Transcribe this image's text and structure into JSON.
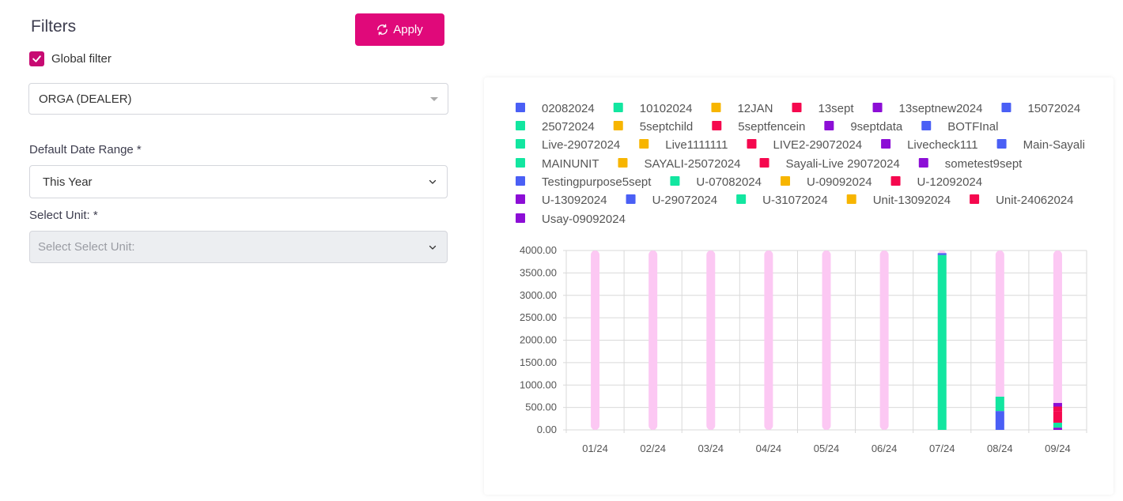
{
  "filters": {
    "title": "Filters",
    "apply_label": "Apply",
    "global_filter_label": "Global filter",
    "global_filter_checked": true,
    "organization_value": "ORGA (DEALER)",
    "date_range_label": "Default Date Range *",
    "date_range_value": "This Year",
    "unit_label": "Select Unit: *",
    "unit_placeholder": "Select Select Unit:"
  },
  "colors": {
    "accent": "#e0097a",
    "checkbox": "#c70a72",
    "background_bar": "#fcc8f3"
  },
  "chart_data": {
    "type": "bar",
    "stacked": true,
    "categories": [
      "01/24",
      "02/24",
      "03/24",
      "04/24",
      "05/24",
      "06/24",
      "07/24",
      "08/24",
      "09/24"
    ],
    "ylim": [
      0,
      4000
    ],
    "yticks": [
      "0.00",
      "500.00",
      "1000.00",
      "1500.00",
      "2000.00",
      "2500.00",
      "3000.00",
      "3500.00",
      "4000.00"
    ],
    "grid": true,
    "legend_position": "top",
    "legend": [
      {
        "name": "02082024",
        "color": "#4a5ff5"
      },
      {
        "name": "10102024",
        "color": "#12e6a0"
      },
      {
        "name": "12JAN",
        "color": "#f7b500"
      },
      {
        "name": "13sept",
        "color": "#f5084e"
      },
      {
        "name": "13septnew2024",
        "color": "#8c0ed6"
      },
      {
        "name": "15072024",
        "color": "#4a5ff5"
      },
      {
        "name": "25072024",
        "color": "#12e6a0"
      },
      {
        "name": "5septchild",
        "color": "#f7b500"
      },
      {
        "name": "5septfencein",
        "color": "#f5084e"
      },
      {
        "name": "9septdata",
        "color": "#8c0ed6"
      },
      {
        "name": "BOTFInal",
        "color": "#4a5ff5"
      },
      {
        "name": "Live-29072024",
        "color": "#12e6a0"
      },
      {
        "name": "Live1111111",
        "color": "#f7b500"
      },
      {
        "name": "LIVE2-29072024",
        "color": "#f5084e"
      },
      {
        "name": "Livecheck111",
        "color": "#8c0ed6"
      },
      {
        "name": "Main-Sayali",
        "color": "#4a5ff5"
      },
      {
        "name": "MAINUNIT",
        "color": "#12e6a0"
      },
      {
        "name": "SAYALI-25072024",
        "color": "#f7b500"
      },
      {
        "name": "Sayali-Live 29072024",
        "color": "#f5084e"
      },
      {
        "name": "sometest9sept",
        "color": "#8c0ed6"
      },
      {
        "name": "Testingpurpose5sept",
        "color": "#4a5ff5"
      },
      {
        "name": "U-07082024",
        "color": "#12e6a0"
      },
      {
        "name": "U-09092024",
        "color": "#f7b500"
      },
      {
        "name": "U-12092024",
        "color": "#f5084e"
      },
      {
        "name": "U-13092024",
        "color": "#8c0ed6"
      },
      {
        "name": "U-29072024",
        "color": "#4a5ff5"
      },
      {
        "name": "U-31072024",
        "color": "#12e6a0"
      },
      {
        "name": "Unit-13092024",
        "color": "#f7b500"
      },
      {
        "name": "Unit-24062024",
        "color": "#f5084e"
      },
      {
        "name": "Usay-09092024",
        "color": "#8c0ed6"
      }
    ],
    "background_max": 4000,
    "stacks": [
      [],
      [],
      [],
      [],
      [],
      [],
      [
        {
          "value": 3900,
          "color": "#12e6a0"
        },
        {
          "value": 40,
          "color": "#4a5ff5"
        }
      ],
      [
        {
          "value": 420,
          "color": "#4a5ff5"
        },
        {
          "value": 320,
          "color": "#12e6a0"
        }
      ],
      [
        {
          "value": 50,
          "color": "#8c0ed6"
        },
        {
          "value": 110,
          "color": "#12e6a0"
        },
        {
          "value": 260,
          "color": "#f5084e"
        },
        {
          "value": 100,
          "color": "#f5084e"
        },
        {
          "value": 80,
          "color": "#8c0ed6"
        }
      ]
    ]
  }
}
